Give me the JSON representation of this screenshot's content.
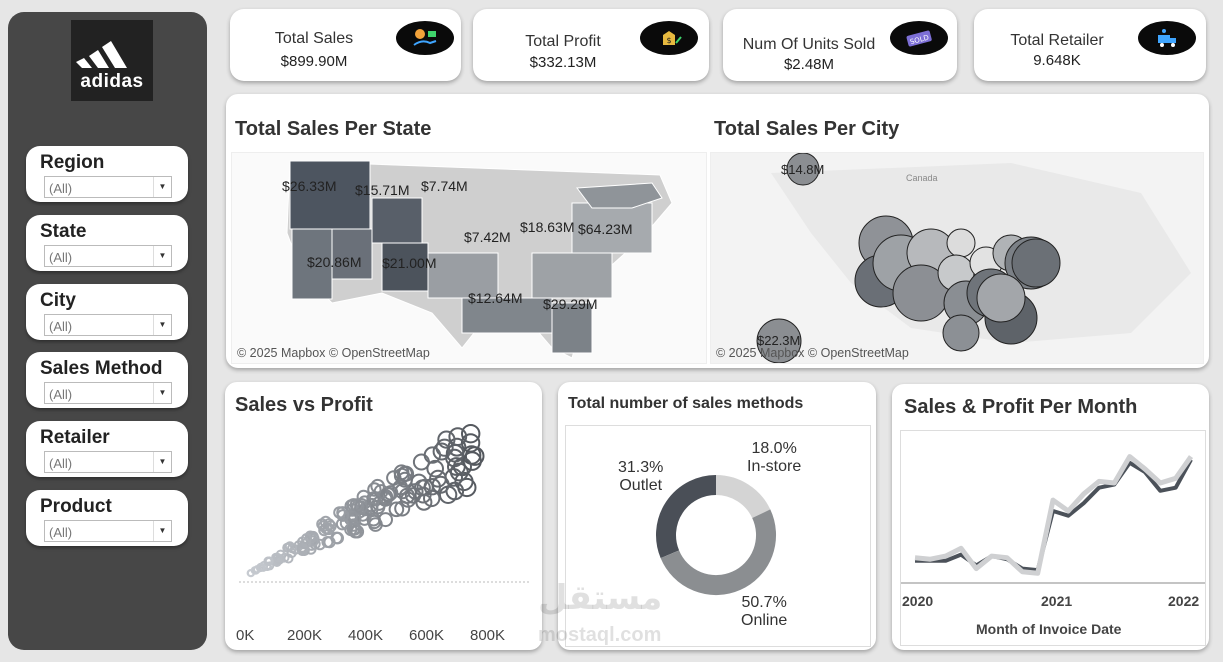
{
  "brand": {
    "name": "adidas"
  },
  "filters": [
    {
      "label": "Region",
      "value": "(All)"
    },
    {
      "label": "State",
      "value": "(All)"
    },
    {
      "label": "City",
      "value": "(All)"
    },
    {
      "label": "Sales Method",
      "value": "(All)"
    },
    {
      "label": "Retailer",
      "value": "(All)"
    },
    {
      "label": "Product",
      "value": "(All)"
    }
  ],
  "kpis": [
    {
      "label": "Total Sales",
      "value": "$899.90M",
      "icon": "sales-money-icon"
    },
    {
      "label": "Total Profit",
      "value": "$332.13M",
      "icon": "profit-money-bag-icon"
    },
    {
      "label": "Num Of Units Sold",
      "value": "$2.48M",
      "icon": "sold-tag-icon"
    },
    {
      "label": "Total Retailer",
      "value": "9.648K",
      "icon": "retailer-truck-icon"
    }
  ],
  "state_map": {
    "title": "Total Sales Per State",
    "labels": [
      "$26.33M",
      "$15.71M",
      "$7.74M",
      "$7.42M",
      "$18.63M",
      "$64.23M",
      "$20.86M",
      "$21.00M",
      "$12.64M",
      "$29.29M"
    ],
    "copyright": "© 2025 Mapbox © OpenStreetMap"
  },
  "city_map": {
    "title": "Total Sales Per City",
    "labels": [
      "$14.8M",
      "$22.3M"
    ],
    "place": "Canada",
    "copyright": "© 2025 Mapbox © OpenStreetMap"
  },
  "scatter": {
    "title": "Sales vs Profit",
    "x_ticks": [
      "0K",
      "200K",
      "400K",
      "600K",
      "800K"
    ]
  },
  "donut": {
    "title": "Total number of sales methods",
    "segments": [
      {
        "name": "Outlet",
        "pct": "31.3%",
        "value": 31.3,
        "color": "#4a4f57"
      },
      {
        "name": "In-store",
        "pct": "18.0%",
        "value": 18.0,
        "color": "#d4d4d4"
      },
      {
        "name": "Online",
        "pct": "50.7%",
        "value": 50.7,
        "color": "#8b8e91"
      }
    ]
  },
  "line": {
    "title": "Sales & Profit Per Month",
    "x_ticks": [
      "2020",
      "2021",
      "2022"
    ],
    "xlabel": "Month of Invoice Date"
  },
  "watermark": {
    "line1": "مستقل",
    "line2": "mostaql.com"
  },
  "chart_data": [
    {
      "type": "scatter",
      "title": "Sales vs Profit",
      "xlim": [
        0,
        850000
      ],
      "x_ticks": [
        0,
        200000,
        400000,
        600000,
        800000
      ]
    },
    {
      "type": "pie",
      "title": "Total number of sales methods",
      "categories": [
        "Outlet",
        "In-store",
        "Online"
      ],
      "values": [
        31.3,
        18.0,
        50.7
      ]
    },
    {
      "type": "line",
      "title": "Sales & Profit Per Month",
      "xlabel": "Month of Invoice Date",
      "x_ticks": [
        "2020",
        "2021",
        "2022"
      ],
      "series": [
        {
          "values": [
            15,
            14,
            16,
            21,
            8,
            16,
            15,
            6,
            5,
            52,
            45,
            56,
            64,
            63,
            80,
            72,
            63,
            66,
            80
          ]
        },
        {
          "values": [
            13,
            13,
            13,
            17,
            10,
            16,
            14,
            8,
            7,
            45,
            42,
            50,
            60,
            62,
            76,
            70,
            58,
            60,
            78
          ]
        }
      ]
    }
  ]
}
